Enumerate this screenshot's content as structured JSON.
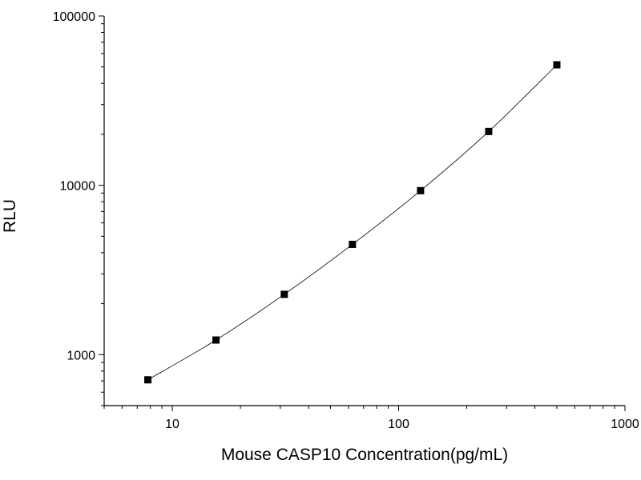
{
  "chart_data": {
    "type": "scatter",
    "title": "",
    "xlabel": "Mouse CASP10 Concentration(pg/mL)",
    "ylabel": "RLU",
    "x_scale": "log",
    "y_scale": "log",
    "xlim": [
      5,
      1000
    ],
    "ylim": [
      500,
      100000
    ],
    "x_ticks": [
      {
        "value": 10,
        "label": "10"
      },
      {
        "value": 100,
        "label": "100"
      },
      {
        "value": 1000,
        "label": "1000"
      }
    ],
    "y_ticks": [
      {
        "value": 1000,
        "label": "1000"
      },
      {
        "value": 10000,
        "label": "10000"
      },
      {
        "value": 100000,
        "label": "100000"
      }
    ],
    "grid": false,
    "legend": "none",
    "series": [
      {
        "x": [
          7.8,
          15.6,
          31.25,
          62.5,
          125,
          250,
          500
        ],
        "y": [
          710,
          1220,
          2270,
          4480,
          9300,
          20800,
          51500
        ],
        "marker": "square",
        "line": "smooth",
        "color": "#000000"
      }
    ]
  }
}
